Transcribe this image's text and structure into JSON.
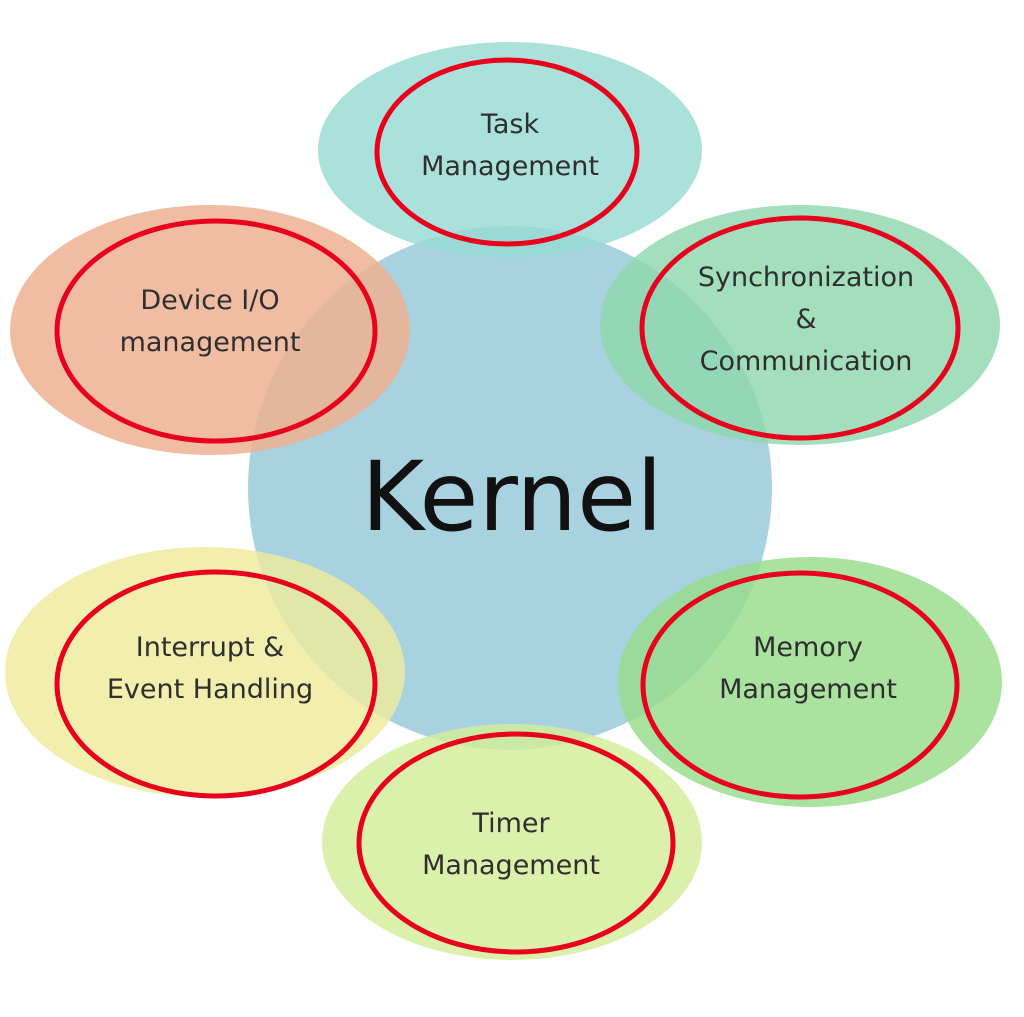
{
  "diagram": {
    "center": {
      "title": "Kernel",
      "color": "#a8d2e0"
    },
    "highlight_color": "#e8001c",
    "nodes": [
      {
        "id": "task",
        "lines": [
          "Task",
          "Management"
        ],
        "color": "#98dbd3"
      },
      {
        "id": "sync",
        "lines": [
          "Synchronization",
          "&",
          "Communication"
        ],
        "color": "#8fd8ad"
      },
      {
        "id": "memory",
        "lines": [
          "Memory",
          "Management"
        ],
        "color": "#97dc8a"
      },
      {
        "id": "timer",
        "lines": [
          "Timer",
          "Management"
        ],
        "color": "#d3ee98"
      },
      {
        "id": "interrupt",
        "lines": [
          "Interrupt &",
          "Event Handling"
        ],
        "color": "#eeea9c"
      },
      {
        "id": "device",
        "lines": [
          "Device I/O",
          "management"
        ],
        "color": "#eeb292"
      }
    ]
  }
}
